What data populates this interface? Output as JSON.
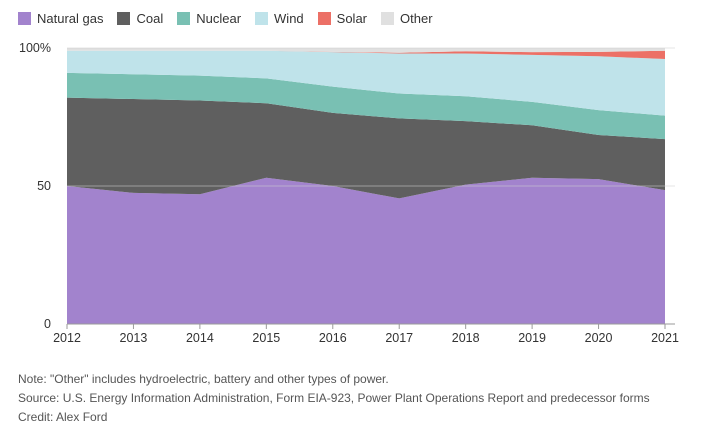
{
  "chart_data": {
    "type": "area",
    "stacked": true,
    "x": [
      2012,
      2013,
      2014,
      2015,
      2016,
      2017,
      2018,
      2019,
      2020,
      2021
    ],
    "x_tick_labels": [
      "2012",
      "2013",
      "2014",
      "2015",
      "2016",
      "2017",
      "2018",
      "2019",
      "2020",
      "2021"
    ],
    "y_ticks": [
      0,
      50,
      100
    ],
    "y_tick_labels": [
      "0",
      "50",
      "100%"
    ],
    "ylim": [
      0,
      100
    ],
    "grid": true,
    "legend_position": "top-left",
    "series": [
      {
        "name": "Natural gas",
        "color": "#a283cd",
        "values": [
          50,
          47.5,
          47,
          53,
          50,
          45.5,
          50.5,
          53,
          52.5,
          48.5
        ]
      },
      {
        "name": "Coal",
        "color": "#5f5f5f",
        "values": [
          32,
          34,
          34,
          27,
          26.5,
          29,
          23,
          19,
          16,
          18.5
        ]
      },
      {
        "name": "Nuclear",
        "color": "#79c0b3",
        "values": [
          9,
          9,
          9,
          9,
          9.5,
          9,
          9,
          8.5,
          9,
          8.5
        ]
      },
      {
        "name": "Wind",
        "color": "#bfe3ea",
        "values": [
          8,
          8.5,
          9,
          10,
          12.5,
          14.5,
          15.5,
          17,
          19.5,
          20.5
        ]
      },
      {
        "name": "Solar",
        "color": "#ec7066",
        "values": [
          0,
          0,
          0,
          0,
          0.1,
          0.3,
          0.8,
          1,
          1.6,
          3
        ]
      },
      {
        "name": "Other",
        "color": "#e0e0e0",
        "values": [
          1,
          1,
          1,
          1,
          1.4,
          1.7,
          1.2,
          1.5,
          1.4,
          1
        ]
      }
    ]
  },
  "notes": {
    "note": "Note: \"Other\" includes hydroelectric, battery and other types of power.",
    "source": "Source: U.S. Energy Information Administration, Form EIA-923, Power Plant Operations Report and predecessor forms",
    "credit": "Credit: Alex Ford"
  }
}
